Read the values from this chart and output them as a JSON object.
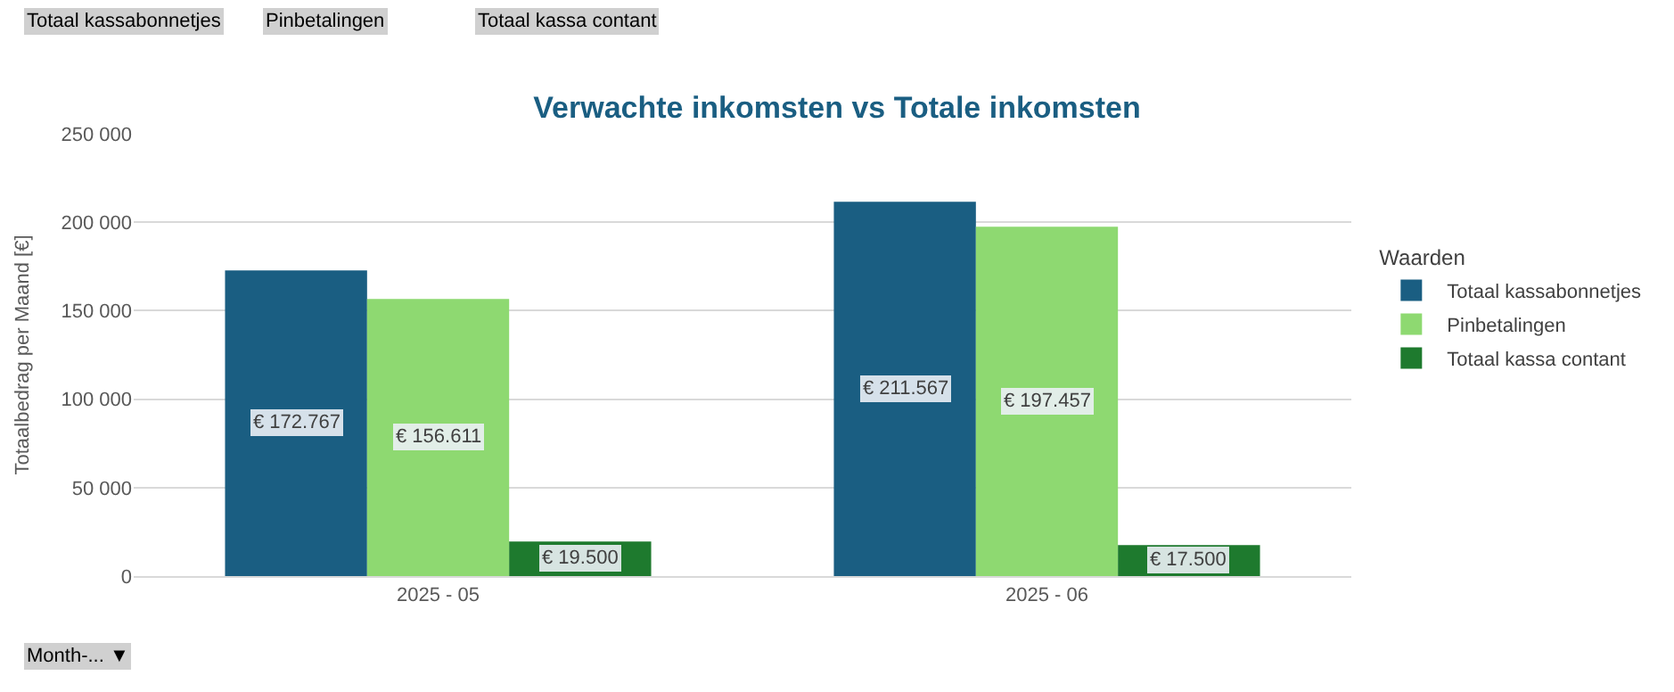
{
  "chart_data": {
    "type": "bar",
    "title": "Verwachte inkomsten vs Totale inkomsten",
    "ylabel": "Totaalbedrag per Maand [€]",
    "legend_title": "Waarden",
    "categories": [
      "2025 - 05",
      "2025 - 06"
    ],
    "series": [
      {
        "name": "Totaal kassabonnetjes",
        "color": "#1a5e82",
        "values": [
          172767,
          211567
        ],
        "value_labels": [
          "€ 172.767",
          "€ 211.567"
        ]
      },
      {
        "name": "Pinbetalingen",
        "color": "#8ed971",
        "values": [
          156611,
          197457
        ],
        "value_labels": [
          "€ 156.611",
          "€ 197.457"
        ]
      },
      {
        "name": "Totaal kassa contant",
        "color": "#1e7a2e",
        "values": [
          19500,
          17500
        ],
        "value_labels": [
          "€ 19.500",
          "€ 17.500"
        ]
      }
    ],
    "ylim": [
      0,
      250000
    ],
    "yticks": [
      0,
      {
        "value": 50000,
        "label": "50 000"
      },
      {
        "value": 100000,
        "label": "100 000"
      },
      {
        "value": 150000,
        "label": "150 000"
      },
      {
        "value": 200000,
        "label": "200 000"
      },
      {
        "value": 250000,
        "label": "250 000"
      }
    ],
    "grid": "y",
    "legend": "right",
    "annotations": [
      "Totaal kassabonnetjes",
      "Pinbetalingen",
      "Totaal kassa contant",
      "Month-... ▼"
    ]
  }
}
